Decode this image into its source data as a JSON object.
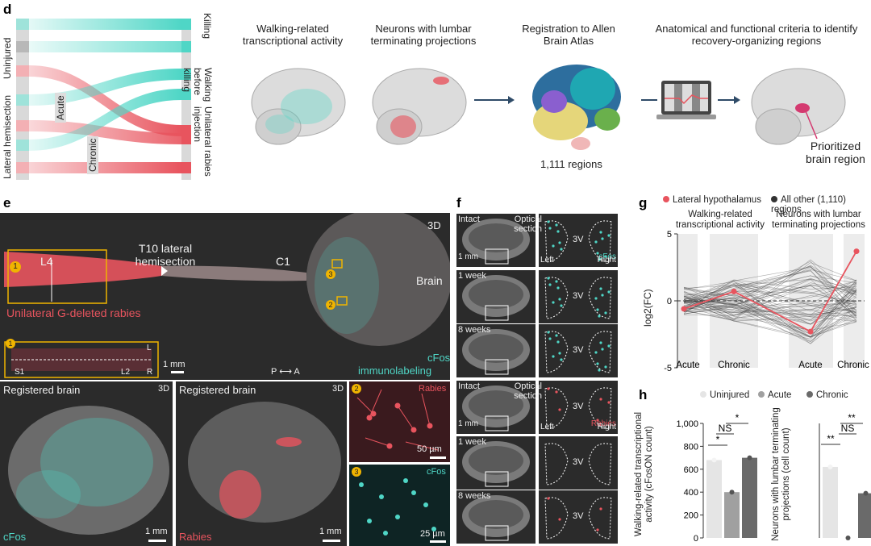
{
  "panels": {
    "d": "d",
    "e": "e",
    "f": "f",
    "g": "g",
    "h": "h"
  },
  "d": {
    "left_groups": [
      "Uninjured",
      "Lateral hemisection"
    ],
    "sub_labels": [
      "Acute",
      "Chronic"
    ],
    "right_groups": [
      "Killing",
      "Walking before killing",
      "Unilateral rabies injection"
    ],
    "steps": [
      "Walking-related transcriptional activity",
      "Neurons with lumbar terminating projections",
      "Registration to Allen Brain Atlas",
      "Anatomical and functional criteria to identify recovery-organizing regions"
    ],
    "regions_count": "1,111 regions",
    "prioritized": "Prioritized brain region",
    "colors": {
      "teal": "#4fd6c6",
      "red": "#e8545e"
    }
  },
  "e": {
    "corner": "3D",
    "L4": "L4",
    "T10": "T10 lateral hemisection",
    "C1": "C1",
    "brain": "Brain",
    "rabies": "Unilateral G-deleted rabies",
    "markers": [
      "1",
      "2",
      "3"
    ],
    "inset_labels": [
      "L",
      "S1",
      "L2",
      "R"
    ],
    "scale_1mm": "1 mm",
    "axis": "P ⟷ A",
    "stain1": "cFos",
    "stain2": "immunolabeling",
    "reg_title": "Registered brain",
    "cfos": "cFos",
    "rabies_label": "Rabies",
    "scale_50": "50 µm",
    "scale_25": "25 µm"
  },
  "f": {
    "rows": [
      "Intact",
      "1 week",
      "8 weeks",
      "Intact",
      "1 week",
      "8 weeks"
    ],
    "optical": "Optical section",
    "scale": "1 mm",
    "stains": [
      "cFos",
      "Rabies"
    ],
    "left": "Left",
    "right": "Right",
    "ventricle": "3V"
  },
  "chart_data": [
    {
      "type": "line",
      "legend": [
        "Lateral hypothalamus",
        "All other (1,110) regions"
      ],
      "headers": [
        "Walking-related transcriptional activity",
        "Neurons with lumbar terminating projections"
      ],
      "categories": [
        "Acute",
        "Chronic",
        "Acute",
        "Chronic"
      ],
      "ylabel": "log2(FC)",
      "ylim": [
        -5,
        5
      ],
      "yticks": [
        5,
        0,
        -5
      ],
      "highlight": {
        "name": "Lateral hypothalamus",
        "values": [
          -0.6,
          0.7,
          -2.3,
          3.7
        ]
      }
    },
    {
      "type": "bar",
      "legend": [
        "Uninjured",
        "Acute",
        "Chronic"
      ],
      "title": "Walking-related transcriptional activity",
      "ylabel": "Walking-related transcriptional activity (cFosON count)",
      "categories": [
        "Uninjured",
        "Acute",
        "Chronic"
      ],
      "values": [
        680,
        400,
        700
      ],
      "ylim": [
        0,
        1000
      ],
      "yticks": [
        "1,000",
        "800",
        "600",
        "400",
        "200",
        "0"
      ],
      "significance": [
        "NS",
        "*",
        "*"
      ]
    },
    {
      "type": "bar",
      "title": "Neurons with lumbar terminating projections",
      "ylabel": "Neurons with lumbar terminating projections (cell count)",
      "categories": [
        "Uninjured",
        "Acute",
        "Chronic"
      ],
      "values": [
        62,
        0,
        39
      ],
      "significance": [
        "NS",
        "**",
        "**"
      ]
    }
  ]
}
